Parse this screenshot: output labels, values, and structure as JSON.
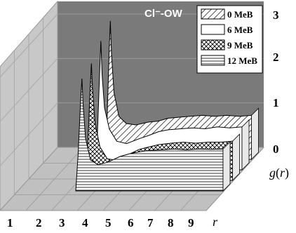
{
  "chart_data": {
    "type": "area",
    "title": "Cl⁻-OW",
    "xlabel": "r",
    "ylabel": "g(r)",
    "x_ticks": [
      "1",
      "2",
      "3",
      "4",
      "5",
      "6",
      "7",
      "8",
      "9"
    ],
    "y_ticks": [
      "0",
      "1",
      "2",
      "3"
    ],
    "ylim": [
      0,
      3
    ],
    "legend_position": "top-right",
    "series": [
      {
        "name": "0 MeB",
        "pattern": "diagonal-hatch",
        "points": [
          [
            3.0,
            0
          ],
          [
            3.1,
            0.5
          ],
          [
            3.2,
            2.2
          ],
          [
            3.25,
            2.9
          ],
          [
            3.3,
            2.2
          ],
          [
            3.4,
            1.4
          ],
          [
            3.6,
            0.9
          ],
          [
            3.9,
            0.75
          ],
          [
            4.3,
            0.72
          ],
          [
            4.8,
            0.78
          ],
          [
            5.2,
            0.8
          ],
          [
            5.6,
            0.86
          ],
          [
            6.0,
            0.88
          ],
          [
            6.5,
            0.9
          ],
          [
            7.0,
            0.92
          ],
          [
            7.5,
            0.9
          ],
          [
            8.0,
            0.92
          ],
          [
            8.5,
            0.9
          ],
          [
            9.0,
            0.92
          ]
        ]
      },
      {
        "name": "6 MeB",
        "pattern": "white",
        "points": [
          [
            3.0,
            0
          ],
          [
            3.1,
            0.6
          ],
          [
            3.2,
            2.0
          ],
          [
            3.25,
            2.7
          ],
          [
            3.3,
            2.0
          ],
          [
            3.4,
            1.3
          ],
          [
            3.6,
            0.85
          ],
          [
            3.9,
            0.6
          ],
          [
            4.3,
            0.55
          ],
          [
            4.8,
            0.65
          ],
          [
            5.2,
            0.72
          ],
          [
            5.6,
            0.8
          ],
          [
            6.0,
            0.84
          ],
          [
            6.5,
            0.86
          ],
          [
            7.0,
            0.88
          ],
          [
            7.5,
            0.86
          ],
          [
            8.0,
            0.9
          ],
          [
            8.5,
            0.88
          ],
          [
            9.0,
            0.9
          ]
        ]
      },
      {
        "name": "9 MeB",
        "pattern": "crosshatch",
        "points": [
          [
            3.0,
            0
          ],
          [
            3.1,
            0.7
          ],
          [
            3.2,
            1.9
          ],
          [
            3.25,
            2.45
          ],
          [
            3.3,
            1.9
          ],
          [
            3.4,
            1.2
          ],
          [
            3.6,
            0.7
          ],
          [
            3.9,
            0.45
          ],
          [
            4.3,
            0.42
          ],
          [
            4.8,
            0.55
          ],
          [
            5.2,
            0.65
          ],
          [
            5.6,
            0.7
          ],
          [
            6.0,
            0.75
          ],
          [
            6.5,
            0.78
          ],
          [
            7.0,
            0.8
          ],
          [
            7.5,
            0.78
          ],
          [
            8.0,
            0.8
          ],
          [
            8.5,
            0.8
          ],
          [
            9.0,
            0.82
          ]
        ]
      },
      {
        "name": "12 MeB",
        "pattern": "horizontal-lines",
        "points": [
          [
            3.0,
            0
          ],
          [
            3.1,
            0.8
          ],
          [
            3.2,
            1.9
          ],
          [
            3.25,
            2.35
          ],
          [
            3.3,
            1.8
          ],
          [
            3.4,
            1.1
          ],
          [
            3.6,
            0.65
          ],
          [
            3.9,
            0.55
          ],
          [
            4.3,
            0.6
          ],
          [
            4.8,
            0.72
          ],
          [
            5.2,
            0.78
          ],
          [
            5.6,
            0.82
          ],
          [
            6.0,
            0.85
          ],
          [
            6.5,
            0.86
          ],
          [
            7.0,
            0.88
          ],
          [
            7.5,
            0.86
          ],
          [
            8.0,
            0.88
          ],
          [
            8.5,
            0.87
          ],
          [
            9.0,
            0.88
          ]
        ]
      }
    ]
  }
}
